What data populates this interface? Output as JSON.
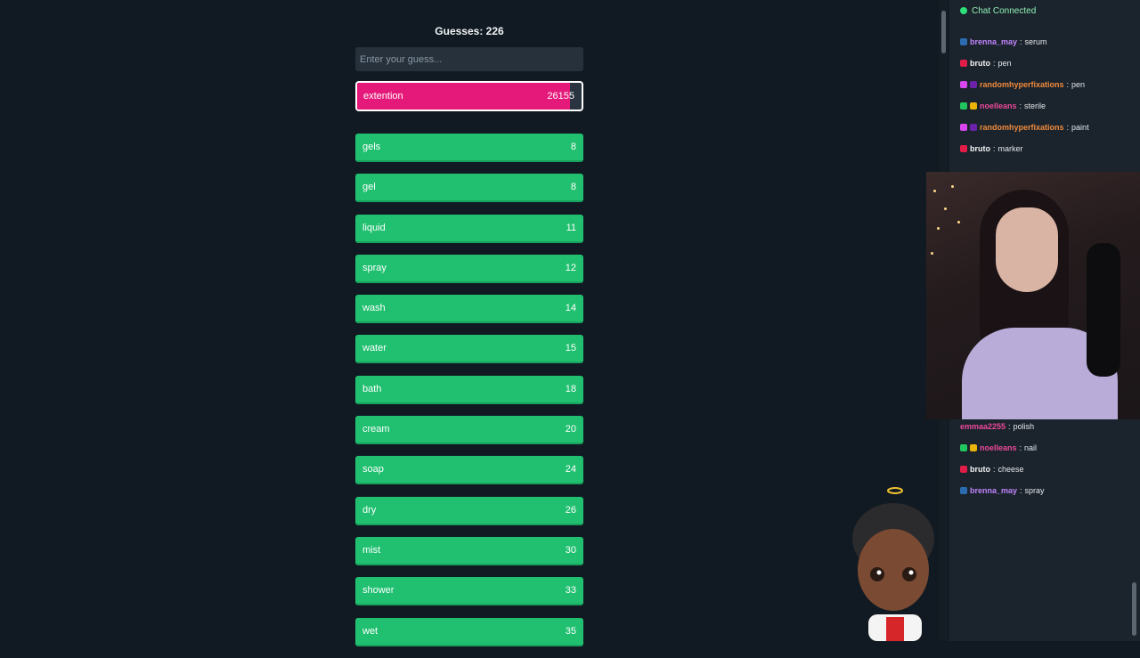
{
  "game": {
    "guess_count_label": "Guesses: 226",
    "input_placeholder": "Enter your guess...",
    "current_guess": {
      "word": "extention",
      "rank": "26155",
      "closeness": 0.95,
      "color": "#e5197a"
    },
    "guesses": [
      {
        "word": "gels",
        "rank": "8"
      },
      {
        "word": "gel",
        "rank": "8"
      },
      {
        "word": "liquid",
        "rank": "11"
      },
      {
        "word": "spray",
        "rank": "12"
      },
      {
        "word": "wash",
        "rank": "14"
      },
      {
        "word": "water",
        "rank": "15"
      },
      {
        "word": "bath",
        "rank": "18"
      },
      {
        "word": "cream",
        "rank": "20"
      },
      {
        "word": "soap",
        "rank": "24"
      },
      {
        "word": "dry",
        "rank": "26"
      },
      {
        "word": "mist",
        "rank": "30"
      },
      {
        "word": "shower",
        "rank": "33"
      },
      {
        "word": "wet",
        "rank": "35"
      }
    ],
    "colors": {
      "close": "#21c070",
      "far": "#e5197a",
      "background": "#111a22"
    }
  },
  "chat": {
    "status_label": "Chat Connected",
    "status_color": "#2ee07a",
    "top_messages": [
      {
        "user": "brenna_may",
        "message": "serum",
        "user_color": "#c084fc"
      },
      {
        "user": "bruto",
        "message": "pen",
        "user_color": "#f5f5f5"
      },
      {
        "user": "randomhyperfixations",
        "message": "pen",
        "user_color": "#f08a3c"
      },
      {
        "user": "noelleans",
        "message": "sterile",
        "user_color": "#ec4899"
      },
      {
        "user": "randomhyperfixations",
        "message": "paint",
        "user_color": "#f08a3c"
      },
      {
        "user": "bruto",
        "message": "marker",
        "user_color": "#f5f5f5"
      }
    ],
    "bottom_messages": [
      {
        "user": "emmaa2255",
        "message": "polish",
        "user_color": "#ec4899"
      },
      {
        "user": "noelleans",
        "message": "nail",
        "user_color": "#ec4899"
      },
      {
        "user": "bruto",
        "message": "cheese",
        "user_color": "#f5f5f5"
      },
      {
        "user": "brenna_may",
        "message": "spray",
        "user_color": "#c084fc"
      }
    ]
  }
}
